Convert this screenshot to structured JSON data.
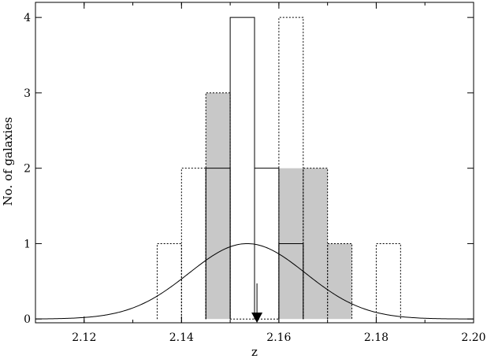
{
  "chart_data": {
    "type": "bar",
    "xlabel": "z",
    "ylabel": "No. of galaxies",
    "xlim": [
      2.11,
      2.2
    ],
    "ylim": [
      -0.05,
      4.2
    ],
    "bin_width": 0.005,
    "xticks": [
      "2.12",
      "2.14",
      "2.16",
      "2.18",
      "2.20"
    ],
    "yticks": [
      "0",
      "1",
      "2",
      "3",
      "4"
    ],
    "series": [
      {
        "style": "shaded",
        "color": "#c8c8c8",
        "bins": [
          {
            "x0": 2.145,
            "count": 3
          },
          {
            "x0": 2.155,
            "count": 0
          },
          {
            "x0": 2.16,
            "count": 2
          },
          {
            "x0": 2.165,
            "count": 2
          },
          {
            "x0": 2.17,
            "count": 1
          }
        ]
      },
      {
        "style": "dotted",
        "bins": [
          {
            "x0": 2.135,
            "count": 1
          },
          {
            "x0": 2.14,
            "count": 2
          },
          {
            "x0": 2.145,
            "count": 3
          },
          {
            "x0": 2.15,
            "count": 0
          },
          {
            "x0": 2.155,
            "count": 0
          },
          {
            "x0": 2.16,
            "count": 4
          },
          {
            "x0": 2.165,
            "count": 2
          },
          {
            "x0": 2.17,
            "count": 1
          },
          {
            "x0": 2.18,
            "count": 1
          }
        ]
      },
      {
        "style": "solid",
        "bins": [
          {
            "x0": 2.145,
            "count": 2
          },
          {
            "x0": 2.15,
            "count": 4
          },
          {
            "x0": 2.155,
            "count": 2
          },
          {
            "x0": 2.16,
            "count": 1
          }
        ]
      }
    ],
    "curve": {
      "type": "gaussian",
      "center": 2.1535,
      "sigma": 0.012,
      "peak": 1.0
    },
    "arrow": {
      "x": 2.1555
    }
  }
}
